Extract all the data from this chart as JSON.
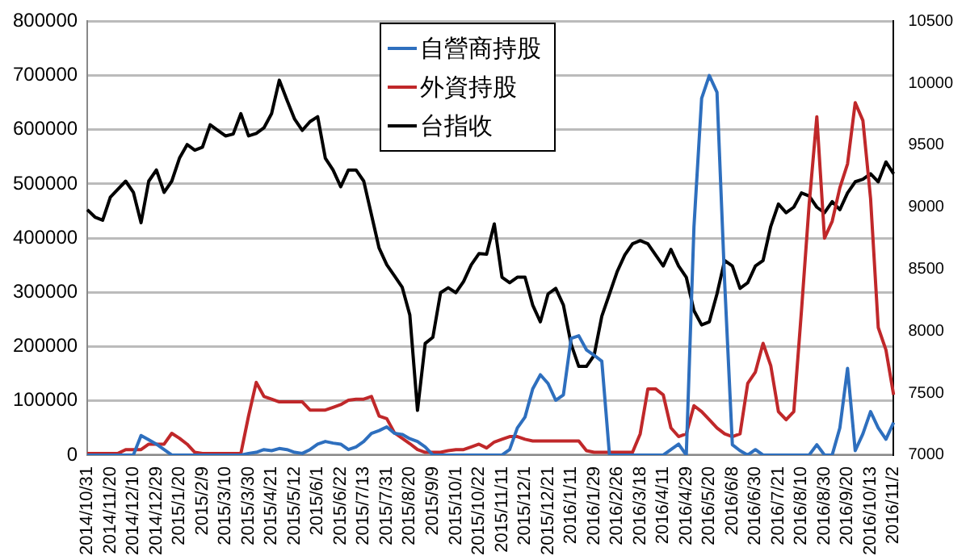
{
  "chart_data": {
    "type": "line",
    "categories": [
      "2014/10/31",
      null,
      null,
      "2014/11/20",
      null,
      null,
      "2014/12/10",
      null,
      null,
      "2014/12/29",
      null,
      null,
      "2015/1/20",
      null,
      null,
      "2015/2/9",
      null,
      null,
      "2015/3/10",
      null,
      null,
      "2015/3/30",
      null,
      null,
      "2015/4/21",
      null,
      null,
      "2015/5/12",
      null,
      null,
      "2015/6/1",
      null,
      null,
      "2015/6/22",
      null,
      null,
      "2015/7/13",
      null,
      null,
      "2015/7/31",
      null,
      null,
      "2015/8/20",
      null,
      null,
      "2015/9/9",
      null,
      null,
      "2015/10/1",
      null,
      null,
      "2015/10/22",
      null,
      null,
      "2015/11/11",
      null,
      null,
      "2015/12/1",
      null,
      null,
      "2015/12/21",
      null,
      null,
      "2016/1/11",
      null,
      null,
      "2016/1/29",
      null,
      null,
      "2016/2/26",
      null,
      null,
      "2016/3/18",
      null,
      null,
      "2016/4/11",
      null,
      null,
      "2016/4/29",
      null,
      null,
      "2016/5/20",
      null,
      null,
      "2016/6/8",
      null,
      null,
      "2016/6/30",
      null,
      null,
      "2016/7/21",
      null,
      null,
      "2016/8/10",
      null,
      null,
      "2016/8/30",
      null,
      null,
      "2016/9/20",
      null,
      null,
      "2016/10/13",
      null,
      null,
      "2016/11/2"
    ],
    "series": [
      {
        "name": "自營商持股",
        "color": "#2e6fbe",
        "values": [
          0,
          0,
          0,
          0,
          0,
          0,
          0,
          36000,
          28000,
          20000,
          10000,
          0,
          0,
          0,
          0,
          0,
          0,
          0,
          0,
          0,
          0,
          3000,
          5000,
          10000,
          8000,
          12000,
          10000,
          5000,
          3000,
          10000,
          20000,
          25000,
          22000,
          20000,
          10000,
          15000,
          25000,
          40000,
          45000,
          52000,
          40000,
          38000,
          30000,
          25000,
          15000,
          0,
          0,
          0,
          0,
          0,
          0,
          0,
          0,
          0,
          0,
          10000,
          50000,
          70000,
          122000,
          148000,
          132000,
          101000,
          111000,
          215000,
          220000,
          194000,
          184000,
          173000,
          0,
          0,
          0,
          0,
          0,
          0,
          0,
          0,
          10000,
          20000,
          0,
          421000,
          658000,
          700000,
          669000,
          318000,
          19000,
          8000,
          0,
          10000,
          0,
          0,
          0,
          0,
          0,
          0,
          0,
          19000,
          0,
          0,
          50000,
          160000,
          8000,
          39000,
          80000,
          50000,
          29000,
          60000
        ]
      },
      {
        "name": "外資持股",
        "color": "#c0282a",
        "values": [
          3000,
          3000,
          3000,
          3000,
          3000,
          10000,
          10000,
          10000,
          20000,
          20000,
          20000,
          40000,
          31000,
          20000,
          5000,
          3000,
          3000,
          3000,
          3000,
          3000,
          3000,
          72000,
          134000,
          108000,
          103000,
          98000,
          98000,
          98000,
          98000,
          83000,
          83000,
          83000,
          88000,
          93000,
          101000,
          103000,
          103000,
          108000,
          72000,
          67000,
          41000,
          31000,
          21000,
          10000,
          5000,
          5000,
          5000,
          8000,
          10000,
          10000,
          15000,
          20000,
          13000,
          24000,
          29000,
          34000,
          34000,
          29000,
          26000,
          26000,
          26000,
          26000,
          26000,
          26000,
          26000,
          8000,
          5000,
          5000,
          5000,
          5000,
          5000,
          5000,
          39000,
          122000,
          122000,
          111000,
          50000,
          34000,
          39000,
          91000,
          80000,
          65000,
          50000,
          39000,
          34000,
          39000,
          132000,
          153000,
          206000,
          165000,
          80000,
          65000,
          80000,
          266000,
          462000,
          624000,
          400000,
          431000,
          493000,
          537000,
          650000,
          617000,
          473000,
          235000,
          194000,
          111000
        ]
      },
      {
        "name": "台指收",
        "color": "#000000",
        "axis": "y2",
        "values": [
          8980,
          8920,
          8895,
          9080,
          9145,
          9210,
          9120,
          8875,
          9210,
          9300,
          9120,
          9210,
          9395,
          9505,
          9460,
          9485,
          9665,
          9620,
          9575,
          9590,
          9755,
          9575,
          9595,
          9640,
          9755,
          10025,
          9865,
          9710,
          9620,
          9690,
          9730,
          9395,
          9300,
          9165,
          9300,
          9300,
          9210,
          8940,
          8670,
          8535,
          8445,
          8355,
          8130,
          7360,
          7900,
          7950,
          8310,
          8350,
          8310,
          8400,
          8535,
          8625,
          8620,
          8865,
          8435,
          8390,
          8435,
          8435,
          8210,
          8075,
          8300,
          8345,
          8210,
          7895,
          7715,
          7715,
          7805,
          8120,
          8300,
          8480,
          8615,
          8705,
          8730,
          8705,
          8615,
          8525,
          8660,
          8525,
          8435,
          8165,
          8050,
          8075,
          8300,
          8570,
          8525,
          8345,
          8390,
          8525,
          8570,
          8845,
          9025,
          8955,
          9000,
          9115,
          9090,
          9000,
          8955,
          9045,
          8980,
          9115,
          9205,
          9225,
          9270,
          9205,
          9365,
          9270
        ]
      }
    ],
    "ylim": [
      0,
      800000
    ],
    "yticks": [
      0,
      100000,
      200000,
      300000,
      400000,
      500000,
      600000,
      700000,
      800000
    ],
    "y2lim": [
      7000,
      10500
    ],
    "y2ticks": [
      7000,
      7500,
      8000,
      8500,
      9000,
      9500,
      10000,
      10500
    ],
    "grid": "y",
    "legend": "top",
    "marker": "none",
    "line_style": "solid"
  }
}
